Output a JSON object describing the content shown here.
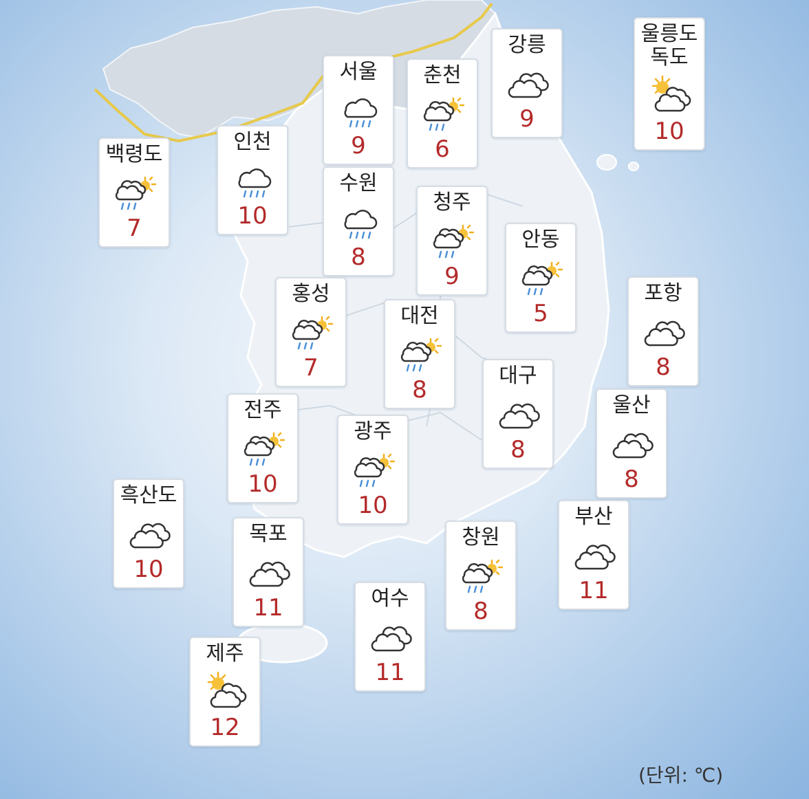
{
  "unit_label": "(단위: ℃)",
  "cities": [
    {
      "id": "baengnyeongdo",
      "name": "백령도",
      "icon": "cloud-sun-rain",
      "temp": "7"
    },
    {
      "id": "incheon",
      "name": "인천",
      "icon": "cloud-rain",
      "temp": "10"
    },
    {
      "id": "seoul",
      "name": "서울",
      "icon": "cloud-rain",
      "temp": "9"
    },
    {
      "id": "suwon",
      "name": "수원",
      "icon": "cloud-rain",
      "temp": "8"
    },
    {
      "id": "chuncheon",
      "name": "춘천",
      "icon": "cloud-sun-rain",
      "temp": "6"
    },
    {
      "id": "gangneung",
      "name": "강릉",
      "icon": "cloudy",
      "temp": "9"
    },
    {
      "id": "ulleungdo",
      "name": "울릉도\n독도",
      "icon": "sun-cloud",
      "temp": "10"
    },
    {
      "id": "cheongju",
      "name": "청주",
      "icon": "cloud-sun-rain",
      "temp": "9"
    },
    {
      "id": "andong",
      "name": "안동",
      "icon": "cloud-sun-rain",
      "temp": "5"
    },
    {
      "id": "hongseong",
      "name": "홍성",
      "icon": "cloud-sun-rain",
      "temp": "7"
    },
    {
      "id": "daejeon",
      "name": "대전",
      "icon": "cloud-sun-rain",
      "temp": "8"
    },
    {
      "id": "pohang",
      "name": "포항",
      "icon": "cloudy",
      "temp": "8"
    },
    {
      "id": "daegu",
      "name": "대구",
      "icon": "cloudy",
      "temp": "8"
    },
    {
      "id": "ulsan",
      "name": "울산",
      "icon": "cloudy",
      "temp": "8"
    },
    {
      "id": "jeonju",
      "name": "전주",
      "icon": "cloud-sun-rain",
      "temp": "10"
    },
    {
      "id": "gwangju",
      "name": "광주",
      "icon": "cloud-sun-rain",
      "temp": "10"
    },
    {
      "id": "heuksando",
      "name": "흑산도",
      "icon": "cloudy",
      "temp": "10"
    },
    {
      "id": "mokpo",
      "name": "목포",
      "icon": "cloudy",
      "temp": "11"
    },
    {
      "id": "busan",
      "name": "부산",
      "icon": "cloudy",
      "temp": "11"
    },
    {
      "id": "changwon",
      "name": "창원",
      "icon": "cloud-sun-rain",
      "temp": "8"
    },
    {
      "id": "yeosu",
      "name": "여수",
      "icon": "cloudy",
      "temp": "11"
    },
    {
      "id": "jeju",
      "name": "제주",
      "icon": "sun-cloud",
      "temp": "12"
    }
  ]
}
